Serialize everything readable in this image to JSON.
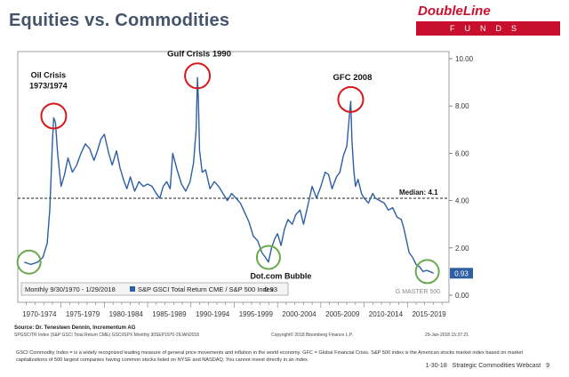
{
  "title": "Equities vs. Commodities",
  "logo": {
    "brand": "DoubleLine",
    "sub": "FUNDS"
  },
  "chart_data": {
    "type": "line",
    "series": [
      {
        "name": "S&P GSCI Total Return CME / S&P 500 Index",
        "x": [
          1970.75,
          1971.5,
          1972.3,
          1972.9,
          1973.4,
          1973.7,
          1974.0,
          1974.15,
          1974.35,
          1974.6,
          1975.0,
          1975.4,
          1975.8,
          1976.3,
          1976.8,
          1977.3,
          1977.8,
          1978.3,
          1978.8,
          1979.2,
          1979.6,
          1980.0,
          1980.5,
          1980.9,
          1981.4,
          1981.8,
          1982.2,
          1982.6,
          1983.0,
          1983.5,
          1984.0,
          1984.5,
          1985.0,
          1985.5,
          1986.0,
          1986.4,
          1986.8,
          1987.2,
          1987.6,
          1987.9,
          1988.4,
          1988.9,
          1989.4,
          1989.9,
          1990.3,
          1990.6,
          1990.75,
          1990.85,
          1991.0,
          1991.3,
          1991.7,
          1992.2,
          1992.7,
          1993.2,
          1993.7,
          1994.2,
          1994.7,
          1995.2,
          1995.7,
          1996.2,
          1996.7,
          1997.2,
          1997.7,
          1998.2,
          1998.6,
          1998.95,
          1999.3,
          1999.7,
          2000.0,
          2000.4,
          2000.8,
          2001.2,
          2001.7,
          2002.1,
          2002.6,
          2003.0,
          2003.5,
          2004.0,
          2004.5,
          2005.0,
          2005.5,
          2005.9,
          2006.3,
          2006.8,
          2007.2,
          2007.6,
          2008.0,
          2008.3,
          2008.45,
          2008.6,
          2008.8,
          2009.0,
          2009.3,
          2009.7,
          2010.0,
          2010.5,
          2011.0,
          2011.3,
          2011.8,
          2012.3,
          2012.8,
          2013.3,
          2013.8,
          2014.3,
          2014.6,
          2014.9,
          2015.2,
          2015.6,
          2016.0,
          2016.4,
          2016.8,
          2017.2,
          2017.6,
          2018.0
        ],
        "values": [
          1.4,
          1.3,
          1.4,
          1.6,
          2.2,
          3.6,
          6.5,
          7.5,
          7.3,
          6.0,
          4.6,
          5.1,
          5.8,
          5.2,
          5.5,
          6.0,
          6.4,
          6.2,
          5.7,
          6.1,
          6.6,
          6.8,
          6.0,
          5.5,
          6.1,
          5.4,
          4.9,
          4.5,
          5.0,
          4.4,
          4.8,
          4.6,
          4.7,
          4.6,
          4.3,
          4.1,
          4.6,
          4.8,
          4.5,
          6.0,
          5.3,
          4.7,
          4.4,
          4.8,
          5.6,
          7.0,
          9.2,
          8.3,
          6.1,
          5.2,
          5.3,
          4.5,
          4.8,
          4.6,
          4.3,
          4.0,
          4.3,
          4.1,
          3.9,
          3.5,
          3.1,
          2.5,
          2.3,
          1.8,
          1.6,
          1.4,
          2.0,
          2.4,
          2.6,
          2.1,
          2.8,
          3.2,
          3.0,
          3.4,
          3.6,
          3.0,
          3.8,
          4.6,
          4.1,
          4.6,
          5.2,
          5.1,
          4.5,
          5.0,
          5.2,
          5.9,
          6.3,
          7.6,
          8.2,
          6.5,
          5.3,
          4.6,
          4.9,
          4.3,
          4.1,
          3.9,
          4.3,
          4.1,
          4.0,
          3.9,
          3.6,
          3.7,
          3.3,
          3.2,
          2.8,
          2.3,
          1.8,
          1.6,
          1.3,
          1.2,
          1.0,
          1.05,
          1.0,
          0.93
        ]
      }
    ],
    "median": 4.1,
    "median_label": "Median: 4.1",
    "last_value_label": "0.93",
    "xlim": [
      1970.0,
      2019.8
    ],
    "ylim": [
      -0.3,
      10.3
    ],
    "yticks": [
      0,
      2,
      4,
      6,
      8,
      10
    ],
    "ytick_labels": [
      "0.00",
      "2.00",
      "4.00",
      "6.00",
      "8.00",
      "10.00"
    ],
    "xtick_labels": [
      "1970-1974",
      "1975-1979",
      "1980-1984",
      "1985-1989",
      "1990-1994",
      "1995-1999",
      "2000-2004",
      "2005-2009",
      "2010-2014",
      "2015-2019"
    ],
    "xtick_centers": [
      1972.5,
      1977.5,
      1982.5,
      1987.5,
      1992.5,
      1997.5,
      2002.5,
      2007.5,
      2012.5,
      2017.5
    ],
    "annotations": [
      {
        "text": "Oil Crisis",
        "text2": "1973/1974",
        "x": 1974.15,
        "y": 7.5,
        "circle": "red"
      },
      {
        "text": "Gulf Crisis 1990",
        "x": 1990.75,
        "y": 9.2,
        "circle": "red"
      },
      {
        "text": "GFC 2008",
        "x": 2008.45,
        "y": 8.2,
        "circle": "red"
      },
      {
        "text": "Dot.com Bubble",
        "x": 1998.95,
        "y": 1.6,
        "circle": "green"
      },
      {
        "x": 1971.3,
        "y": 1.4,
        "circle": "green"
      },
      {
        "x": 2017.3,
        "y": 1.0,
        "circle": "green"
      }
    ],
    "legend": {
      "range": "Monthly 9/30/1970 - 1/29/2018",
      "series_label": "S&P GSCI Total Return CME / S&P 500 Index",
      "value": "0.93"
    },
    "watermark": "G MASTER 500"
  },
  "source": "Source: Dr. Tenesteen Dennin, Incrementum AG",
  "source_line2": "SPGSCITR Index (S&P GSCI Total Return CME) GSCI/SPX    Monthly 30SEP1970-29JAN2018",
  "copyright": "Copyright© 2018 Bloomberg Finance L.P.",
  "timestamp": "29-Jan-2018 15:37:21",
  "footnote": "GSCI Commodity Index = is a widely recognized leading measure of general price movements and inflation in the world economy. GFC = Global Financial Crisis. S&P 500 index is the American stocks market index based on market capitalizations of 500 largest companies having common stocks listed on NYSE and NASDAQ. You cannot invest directly in an index.",
  "footer": {
    "date": "1-30-18",
    "webcast": "Strategic Commodities Webcast",
    "page": "9"
  },
  "colors": {
    "line": "#2e5fa3",
    "title": "#44546a",
    "brand": "#c8102e",
    "red_circle": "#d7191c",
    "green_circle": "#6aa84f"
  }
}
